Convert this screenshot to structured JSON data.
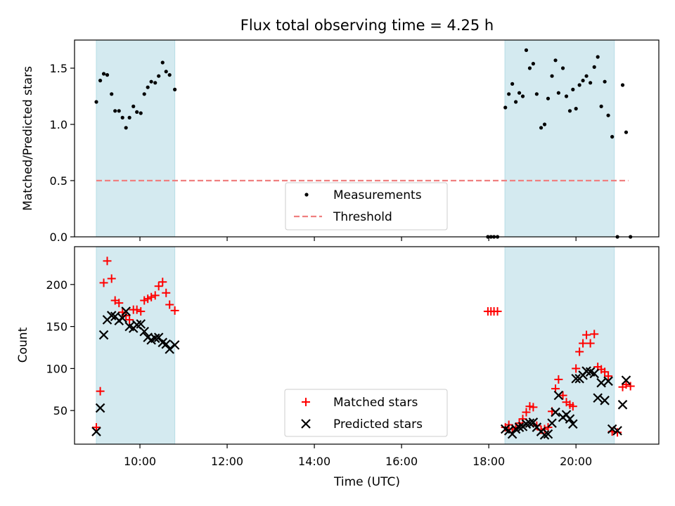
{
  "chart_data": {
    "type": "scatter",
    "title": "Flux total observing time = 4.25 h",
    "xlabel": "Time (UTC)",
    "x_unit": "hour of day (UTC)",
    "xlim": [
      8.5,
      21.9
    ],
    "x_ticks": [
      10,
      12,
      14,
      16,
      18,
      20
    ],
    "x_tick_labels": [
      "10:00",
      "12:00",
      "14:00",
      "16:00",
      "18:00",
      "20:00"
    ],
    "observing_windows": [
      [
        9.0,
        10.8
      ],
      [
        18.37,
        20.88
      ]
    ],
    "window_color": "#d4eaf0",
    "panels": [
      {
        "ylabel": "Matched/Predicted stars",
        "ylim": [
          0,
          1.75
        ],
        "y_ticks": [
          0.0,
          0.5,
          1.0,
          1.5
        ],
        "y_tick_labels": [
          "0.0",
          "0.5",
          "1.0",
          "1.5"
        ],
        "legend_placement": "lower-center",
        "threshold": {
          "name": "Threshold",
          "value": 0.5,
          "x_range": [
            9.0,
            21.2
          ],
          "color": "#f08080",
          "style": "dashed"
        },
        "series": [
          {
            "name": "Measurements",
            "marker": "dot",
            "color": "#000000",
            "points": [
              [
                9.0,
                1.2
              ],
              [
                9.09,
                1.39
              ],
              [
                9.17,
                1.45
              ],
              [
                9.25,
                1.44
              ],
              [
                9.35,
                1.27
              ],
              [
                9.43,
                1.12
              ],
              [
                9.52,
                1.12
              ],
              [
                9.6,
                1.06
              ],
              [
                9.68,
                0.97
              ],
              [
                9.76,
                1.06
              ],
              [
                9.85,
                1.16
              ],
              [
                9.93,
                1.11
              ],
              [
                10.02,
                1.1
              ],
              [
                10.1,
                1.27
              ],
              [
                10.18,
                1.33
              ],
              [
                10.26,
                1.38
              ],
              [
                10.35,
                1.37
              ],
              [
                10.43,
                1.43
              ],
              [
                10.52,
                1.55
              ],
              [
                10.6,
                1.47
              ],
              [
                10.68,
                1.44
              ],
              [
                10.8,
                1.31
              ],
              [
                17.98,
                0.0
              ],
              [
                18.05,
                0.0
              ],
              [
                18.12,
                0.0
              ],
              [
                18.2,
                0.0
              ],
              [
                18.38,
                1.15
              ],
              [
                18.46,
                1.27
              ],
              [
                18.54,
                1.36
              ],
              [
                18.62,
                1.2
              ],
              [
                18.7,
                1.28
              ],
              [
                18.78,
                1.25
              ],
              [
                18.86,
                1.66
              ],
              [
                18.94,
                1.5
              ],
              [
                19.02,
                1.54
              ],
              [
                19.1,
                1.27
              ],
              [
                19.2,
                0.97
              ],
              [
                19.28,
                1.0
              ],
              [
                19.36,
                1.23
              ],
              [
                19.45,
                1.43
              ],
              [
                19.53,
                1.57
              ],
              [
                19.6,
                1.28
              ],
              [
                19.7,
                1.5
              ],
              [
                19.78,
                1.25
              ],
              [
                19.86,
                1.12
              ],
              [
                19.93,
                1.31
              ],
              [
                20.0,
                1.14
              ],
              [
                20.08,
                1.35
              ],
              [
                20.16,
                1.39
              ],
              [
                20.24,
                1.43
              ],
              [
                20.33,
                1.37
              ],
              [
                20.42,
                1.51
              ],
              [
                20.5,
                1.6
              ],
              [
                20.58,
                1.16
              ],
              [
                20.66,
                1.38
              ],
              [
                20.74,
                1.08
              ],
              [
                20.83,
                0.89
              ],
              [
                20.95,
                0.0
              ],
              [
                21.07,
                1.35
              ],
              [
                21.15,
                0.93
              ],
              [
                21.25,
                0.0
              ]
            ]
          }
        ]
      },
      {
        "ylabel": "Count",
        "ylim": [
          10,
          245
        ],
        "y_ticks": [
          50,
          100,
          150,
          200
        ],
        "y_tick_labels": [
          "50",
          "100",
          "150",
          "200"
        ],
        "legend_placement": "lower-center",
        "series": [
          {
            "name": "Matched stars",
            "marker": "plus",
            "color": "#ff0000",
            "points": [
              [
                9.0,
                30
              ],
              [
                9.09,
                73
              ],
              [
                9.17,
                202
              ],
              [
                9.25,
                228
              ],
              [
                9.35,
                207
              ],
              [
                9.43,
                181
              ],
              [
                9.52,
                178
              ],
              [
                9.6,
                167
              ],
              [
                9.68,
                163
              ],
              [
                9.76,
                158
              ],
              [
                9.85,
                170
              ],
              [
                9.93,
                170
              ],
              [
                10.02,
                168
              ],
              [
                10.1,
                181
              ],
              [
                10.18,
                183
              ],
              [
                10.26,
                185
              ],
              [
                10.35,
                187
              ],
              [
                10.43,
                198
              ],
              [
                10.52,
                203
              ],
              [
                10.6,
                190
              ],
              [
                10.68,
                176
              ],
              [
                10.8,
                169
              ],
              [
                17.98,
                168
              ],
              [
                18.05,
                168
              ],
              [
                18.12,
                168
              ],
              [
                18.2,
                168
              ],
              [
                18.38,
                30
              ],
              [
                18.46,
                33
              ],
              [
                18.54,
                28
              ],
              [
                18.62,
                30
              ],
              [
                18.7,
                35
              ],
              [
                18.78,
                40
              ],
              [
                18.86,
                48
              ],
              [
                18.94,
                55
              ],
              [
                19.02,
                54
              ],
              [
                19.1,
                32
              ],
              [
                19.2,
                27
              ],
              [
                19.28,
                28
              ],
              [
                19.36,
                30
              ],
              [
                19.45,
                49
              ],
              [
                19.53,
                76
              ],
              [
                19.6,
                87
              ],
              [
                19.7,
                68
              ],
              [
                19.78,
                60
              ],
              [
                19.86,
                57
              ],
              [
                19.93,
                55
              ],
              [
                20.0,
                100
              ],
              [
                20.08,
                120
              ],
              [
                20.16,
                130
              ],
              [
                20.24,
                140
              ],
              [
                20.33,
                130
              ],
              [
                20.42,
                141
              ],
              [
                20.5,
                102
              ],
              [
                20.58,
                99
              ],
              [
                20.66,
                96
              ],
              [
                20.74,
                91
              ],
              [
                20.83,
                25
              ],
              [
                20.95,
                24
              ],
              [
                21.07,
                78
              ],
              [
                21.15,
                81
              ],
              [
                21.25,
                79
              ]
            ]
          },
          {
            "name": "Predicted stars",
            "marker": "x",
            "color": "#000000",
            "points": [
              [
                9.0,
                25
              ],
              [
                9.09,
                53
              ],
              [
                9.17,
                140
              ],
              [
                9.25,
                158
              ],
              [
                9.35,
                163
              ],
              [
                9.43,
                162
              ],
              [
                9.52,
                157
              ],
              [
                9.6,
                160
              ],
              [
                9.68,
                168
              ],
              [
                9.76,
                150
              ],
              [
                9.85,
                148
              ],
              [
                9.93,
                152
              ],
              [
                10.02,
                153
              ],
              [
                10.1,
                144
              ],
              [
                10.18,
                137
              ],
              [
                10.26,
                134
              ],
              [
                10.35,
                136
              ],
              [
                10.43,
                137
              ],
              [
                10.52,
                131
              ],
              [
                10.6,
                129
              ],
              [
                10.68,
                123
              ],
              [
                10.8,
                128
              ],
              [
                18.38,
                28
              ],
              [
                18.46,
                26
              ],
              [
                18.54,
                22
              ],
              [
                18.62,
                28
              ],
              [
                18.7,
                30
              ],
              [
                18.78,
                31
              ],
              [
                18.86,
                34
              ],
              [
                18.94,
                35
              ],
              [
                19.02,
                36
              ],
              [
                19.1,
                30
              ],
              [
                19.2,
                25
              ],
              [
                19.28,
                21
              ],
              [
                19.36,
                22
              ],
              [
                19.45,
                35
              ],
              [
                19.53,
                48
              ],
              [
                19.6,
                68
              ],
              [
                19.7,
                42
              ],
              [
                19.78,
                45
              ],
              [
                19.86,
                40
              ],
              [
                19.93,
                34
              ],
              [
                20.0,
                88
              ],
              [
                20.08,
                88
              ],
              [
                20.16,
                92
              ],
              [
                20.24,
                97
              ],
              [
                20.33,
                96
              ],
              [
                20.42,
                94
              ],
              [
                20.5,
                65
              ],
              [
                20.58,
                83
              ],
              [
                20.66,
                62
              ],
              [
                20.74,
                85
              ],
              [
                20.83,
                28
              ],
              [
                20.95,
                26
              ],
              [
                21.07,
                57
              ],
              [
                21.15,
                86
              ]
            ]
          }
        ]
      }
    ]
  }
}
